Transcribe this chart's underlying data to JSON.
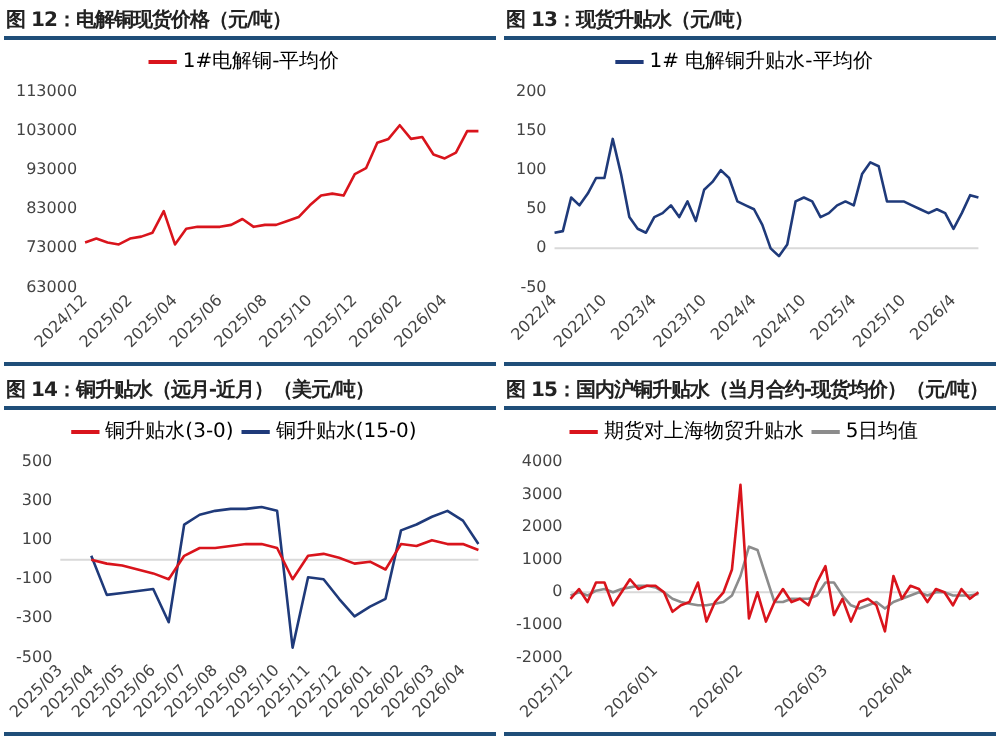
{
  "chart_data": [
    {
      "type": "line",
      "title": "图 12：电解铜现货价格（元/吨）",
      "legend": "top",
      "grid": false,
      "marker": "none",
      "categories": [
        "2024/12",
        null,
        null,
        null,
        "2025/02",
        null,
        null,
        null,
        "2025/04",
        null,
        null,
        null,
        "2025/06",
        null,
        null,
        null,
        "2025/08",
        null,
        null,
        null,
        "2025/10",
        null,
        null,
        null,
        "2025/12",
        null,
        null,
        null,
        "2026/02",
        null,
        null,
        null,
        "2026/04",
        null,
        null,
        null
      ],
      "ylim": [
        63000,
        113000
      ],
      "yticks": [
        63000,
        73000,
        83000,
        93000,
        103000,
        113000
      ],
      "series": [
        {
          "name": "1#电解铜-平均价",
          "color": "#d9141c",
          "values": [
            74500,
            75500,
            74500,
            74000,
            75500,
            76000,
            77000,
            82500,
            74000,
            78000,
            78500,
            78500,
            78500,
            79000,
            80500,
            78500,
            79000,
            79000,
            80000,
            81000,
            84000,
            86500,
            87000,
            86500,
            92000,
            93500,
            100000,
            101000,
            104500,
            101000,
            101500,
            97000,
            96000,
            97500,
            103000,
            103000
          ]
        }
      ]
    },
    {
      "type": "line",
      "title": "图 13：现货升贴水（元/吨）",
      "legend": "top",
      "grid": false,
      "marker": "none",
      "categories": [
        "2022/4",
        null,
        null,
        null,
        null,
        null,
        "2022/10",
        null,
        null,
        null,
        null,
        null,
        "2023/4",
        null,
        null,
        null,
        null,
        null,
        "2023/10",
        null,
        null,
        null,
        null,
        null,
        "2024/4",
        null,
        null,
        null,
        null,
        null,
        "2024/10",
        null,
        null,
        null,
        null,
        null,
        "2025/4",
        null,
        null,
        null,
        null,
        null,
        "2025/10",
        null,
        null,
        null,
        null,
        null,
        "2026/4",
        null,
        null,
        null
      ],
      "ylim": [
        -50,
        200
      ],
      "yticks": [
        -50,
        0,
        50,
        100,
        150,
        200
      ],
      "ref_lines": [
        {
          "axis": "y",
          "value": 0,
          "color": "#d9d9d9"
        }
      ],
      "series": [
        {
          "name": "1# 电解铜升贴水-平均价",
          "color": "#1f3a7a",
          "values": [
            20,
            22,
            65,
            55,
            70,
            90,
            90,
            140,
            95,
            40,
            25,
            20,
            40,
            45,
            55,
            40,
            60,
            35,
            75,
            85,
            100,
            90,
            60,
            55,
            50,
            30,
            0,
            -10,
            5,
            60,
            65,
            60,
            40,
            45,
            55,
            60,
            55,
            95,
            110,
            105,
            60,
            60,
            60,
            55,
            50,
            45,
            50,
            45,
            25,
            45,
            68,
            65
          ]
        }
      ]
    },
    {
      "type": "line",
      "title": "图 14：铜升贴水（远月-近月）（美元/吨）",
      "legend": "top",
      "grid": false,
      "marker": "none",
      "categories": [
        "2025/03",
        null,
        "2025/04",
        null,
        "2025/05",
        null,
        "2025/06",
        null,
        "2025/07",
        null,
        "2025/08",
        null,
        "2025/09",
        null,
        "2025/10",
        null,
        "2025/11",
        null,
        "2025/12",
        null,
        "2026/01",
        null,
        "2026/02",
        null,
        "2026/03",
        null,
        "2026/04",
        null
      ],
      "ylim": [
        -500,
        500
      ],
      "yticks": [
        -500,
        -300,
        -100,
        100,
        300,
        500
      ],
      "ref_lines": [
        {
          "axis": "y",
          "value": 0,
          "color": "#d9d9d9"
        }
      ],
      "series": [
        {
          "name": "铜升贴水(3-0)",
          "color": "#d9141c",
          "values": [
            null,
            null,
            0,
            -20,
            -30,
            -50,
            -70,
            -100,
            20,
            60,
            60,
            70,
            80,
            80,
            60,
            -100,
            20,
            30,
            10,
            -20,
            -10,
            -50,
            80,
            70,
            100,
            80,
            80,
            50
          ]
        },
        {
          "name": "铜升贴水(15-0)",
          "color": "#1f3a7a",
          "values": [
            null,
            null,
            20,
            -180,
            -170,
            -160,
            -150,
            -320,
            180,
            230,
            250,
            260,
            260,
            270,
            250,
            -450,
            -90,
            -100,
            -200,
            -290,
            -240,
            -200,
            150,
            180,
            220,
            250,
            200,
            80
          ]
        }
      ]
    },
    {
      "type": "line",
      "title": "图 15：国内沪铜升贴水（当月合约-现货均价）（元/吨）",
      "legend": "top",
      "grid": false,
      "marker": "none",
      "categories": [
        "2025/12",
        null,
        null,
        null,
        null,
        null,
        null,
        null,
        null,
        null,
        "2026/01",
        null,
        null,
        null,
        null,
        null,
        null,
        null,
        null,
        null,
        "2026/02",
        null,
        null,
        null,
        null,
        null,
        null,
        null,
        null,
        null,
        "2026/03",
        null,
        null,
        null,
        null,
        null,
        null,
        null,
        null,
        null,
        "2026/04",
        null,
        null,
        null,
        null,
        null,
        null,
        null,
        null
      ],
      "ylim": [
        -2000,
        4000
      ],
      "yticks": [
        -2000,
        -1000,
        0,
        1000,
        2000,
        3000,
        4000
      ],
      "ref_lines": [
        {
          "axis": "y",
          "value": 0,
          "color": "#d9d9d9"
        }
      ],
      "series": [
        {
          "name": "期货对上海物贸升贴水",
          "color": "#d9141c",
          "values": [
            -200,
            100,
            -300,
            300,
            300,
            -400,
            0,
            400,
            100,
            200,
            200,
            0,
            -600,
            -400,
            -300,
            300,
            -900,
            -300,
            0,
            700,
            3300,
            -800,
            0,
            -900,
            -300,
            100,
            -300,
            -200,
            -400,
            300,
            800,
            -700,
            -200,
            -900,
            -300,
            -200,
            -400,
            -1200,
            500,
            -200,
            200,
            100,
            -300,
            100,
            0,
            -400,
            100,
            -200,
            0
          ]
        },
        {
          "name": "5日均值",
          "color": "#8c8c8c",
          "values": [
            -100,
            0,
            -100,
            50,
            100,
            0,
            100,
            150,
            200,
            200,
            150,
            0,
            -200,
            -300,
            -350,
            -400,
            -400,
            -350,
            -300,
            -100,
            500,
            1400,
            1300,
            500,
            -300,
            -300,
            -200,
            -200,
            -200,
            -100,
            300,
            300,
            -100,
            -400,
            -500,
            -400,
            -300,
            -500,
            -300,
            -200,
            -100,
            0,
            -100,
            0,
            0,
            -100,
            -100,
            -100,
            -50
          ]
        }
      ]
    }
  ]
}
